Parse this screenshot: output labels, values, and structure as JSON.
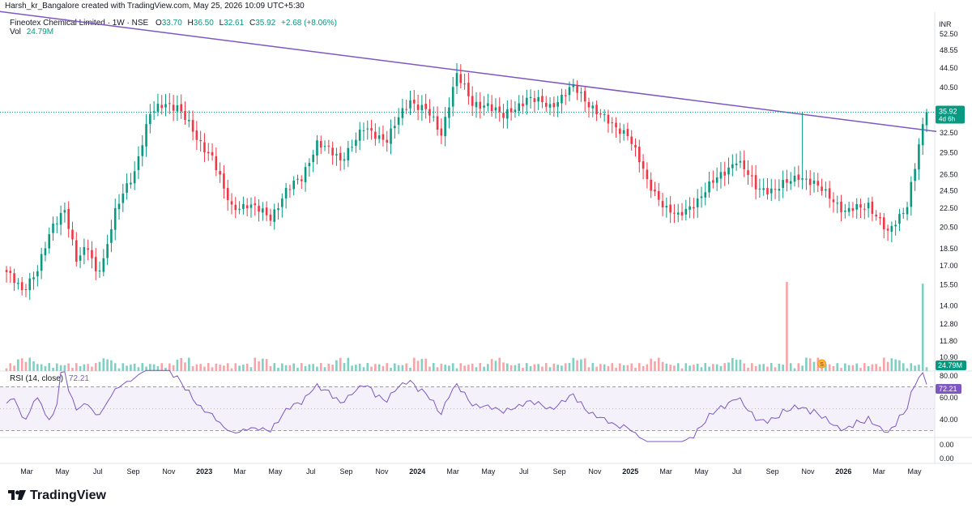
{
  "header": {
    "attribution": "Harsh_kr_Bangalore created with TradingView.com, May 25, 2026 10:09 UTC+5:30"
  },
  "legend": {
    "symbol": "Fineotex Chemical Limited · 1W · NSE",
    "open_label": "O",
    "open": "33.70",
    "high_label": "H",
    "high": "36.50",
    "low_label": "L",
    "low": "32.61",
    "close_label": "C",
    "close": "35.92",
    "change": "+2.68 (+8.06%)",
    "vol_label": "Vol",
    "vol": "24.79M"
  },
  "rsi_legend": {
    "label": "RSI (14, close)",
    "value": "72.21"
  },
  "brand": {
    "name": "TradingView"
  },
  "colors": {
    "up": "#089981",
    "down": "#f23645",
    "up_vol": "#7fcfc3",
    "down_vol": "#f7a4a9",
    "rsi": "#7e57c2",
    "trendline": "#7e57c2"
  },
  "chart_data": {
    "type": "candlestick",
    "currency": "INR",
    "price_axis_ticks": [
      "52.50",
      "48.55",
      "44.50",
      "40.50",
      "36.50",
      "32.50",
      "29.50",
      "26.50",
      "24.50",
      "22.50",
      "20.50",
      "18.50",
      "17.00",
      "15.50",
      "14.00",
      "12.80",
      "11.80",
      "10.90"
    ],
    "price_badges": {
      "last_price": "35.92",
      "time_left": "4d 6h",
      "volume": "24.79M"
    },
    "rsi_axis_ticks": [
      "80.00",
      "60.00",
      "40.00"
    ],
    "rsi_badge": "72.21",
    "rsi_levels": {
      "upper": 70,
      "middle": 50,
      "lower": 30
    },
    "empty_pane_ticks": [
      "0.00",
      "0.00"
    ],
    "time_axis": [
      "Mar",
      "May",
      "Jul",
      "Sep",
      "Nov",
      "2023",
      "Mar",
      "May",
      "Jul",
      "Sep",
      "Nov",
      "2024",
      "Mar",
      "May",
      "Jul",
      "Sep",
      "Nov",
      "2025",
      "Mar",
      "May",
      "Jul",
      "Sep",
      "Nov",
      "2026",
      "Mar",
      "May"
    ],
    "event_marker": "S",
    "trendline": [
      {
        "date": "2022-W38",
        "price": 58.8
      },
      {
        "date": "2026-W22",
        "price": 32.7
      }
    ],
    "anchors": [
      {
        "i": 0,
        "close": 16.5
      },
      {
        "i": 4,
        "close": 15.0
      },
      {
        "i": 8,
        "close": 16.8
      },
      {
        "i": 12,
        "close": 20.5
      },
      {
        "i": 15,
        "close": 22.5
      },
      {
        "i": 18,
        "close": 17.5
      },
      {
        "i": 21,
        "close": 18.5
      },
      {
        "i": 23,
        "close": 16.5
      },
      {
        "i": 25,
        "close": 17.6
      },
      {
        "i": 28,
        "close": 22.0
      },
      {
        "i": 33,
        "close": 27.0
      },
      {
        "i": 37,
        "close": 35.5
      },
      {
        "i": 41,
        "close": 37.5
      },
      {
        "i": 44,
        "close": 37.0
      },
      {
        "i": 49,
        "close": 31.5
      },
      {
        "i": 53,
        "close": 29.0
      },
      {
        "i": 56,
        "close": 24.5
      },
      {
        "i": 58,
        "close": 22.5
      },
      {
        "i": 62,
        "close": 23.0
      },
      {
        "i": 68,
        "close": 21.5
      },
      {
        "i": 72,
        "close": 24.5
      },
      {
        "i": 76,
        "close": 26.0
      },
      {
        "i": 80,
        "close": 31.0
      },
      {
        "i": 86,
        "close": 28.5
      },
      {
        "i": 92,
        "close": 33.0
      },
      {
        "i": 98,
        "close": 31.5
      },
      {
        "i": 104,
        "close": 38.0
      },
      {
        "i": 108,
        "close": 36.5
      },
      {
        "i": 112,
        "close": 32.0
      },
      {
        "i": 116,
        "close": 43.5
      },
      {
        "i": 120,
        "close": 37.0
      },
      {
        "i": 124,
        "close": 37.5
      },
      {
        "i": 128,
        "close": 35.0
      },
      {
        "i": 134,
        "close": 38.5
      },
      {
        "i": 140,
        "close": 37.0
      },
      {
        "i": 146,
        "close": 40.5
      },
      {
        "i": 150,
        "close": 37.5
      },
      {
        "i": 156,
        "close": 33.5
      },
      {
        "i": 160,
        "close": 32.5
      },
      {
        "i": 165,
        "close": 25.5
      },
      {
        "i": 170,
        "close": 22.5
      },
      {
        "i": 173,
        "close": 21.5
      },
      {
        "i": 178,
        "close": 23.5
      },
      {
        "i": 184,
        "close": 26.5
      },
      {
        "i": 188,
        "close": 28.5
      },
      {
        "i": 193,
        "close": 25.0
      },
      {
        "i": 198,
        "close": 24.5
      },
      {
        "i": 204,
        "close": 26.5
      },
      {
        "i": 207,
        "close": 25.5
      },
      {
        "i": 212,
        "close": 24.0
      },
      {
        "i": 216,
        "close": 22.0
      },
      {
        "i": 222,
        "close": 23.0
      },
      {
        "i": 227,
        "close": 19.8
      },
      {
        "i": 232,
        "close": 23.0
      },
      {
        "i": 234,
        "close": 27.5
      },
      {
        "i": 236,
        "close": 33.2
      },
      {
        "i": 237,
        "close": 35.92
      }
    ],
    "volume_spikes": [
      {
        "i": 201,
        "rel": 1.0
      },
      {
        "i": 206,
        "rel": 0.15
      },
      {
        "i": 236,
        "rel": 0.98
      }
    ]
  }
}
